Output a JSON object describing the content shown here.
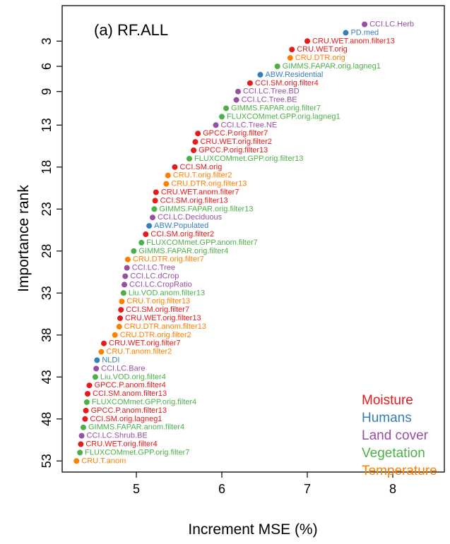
{
  "chart_data": {
    "type": "scatter",
    "title": "(a) RF.ALL",
    "xlabel": "Increment MSE (%)",
    "ylabel": "Importance rank",
    "xlim": [
      4.2,
      8.7
    ],
    "ylim": [
      1,
      54
    ],
    "xticks": [
      5,
      6,
      7,
      8
    ],
    "yticks": [
      3,
      6,
      9,
      13,
      18,
      23,
      28,
      33,
      38,
      43,
      48,
      53
    ],
    "y_reversed": true,
    "grid": false,
    "legend_position": "bottom-right",
    "categories": [
      {
        "name": "Moisture",
        "color": "#e41a1c"
      },
      {
        "name": "Humans",
        "color": "#377eb8"
      },
      {
        "name": "Land cover",
        "color": "#984ea3"
      },
      {
        "name": "Vegetation",
        "color": "#4daf4a"
      },
      {
        "name": "Temperature",
        "color": "#ff7f00"
      }
    ],
    "points": [
      {
        "rank": 1,
        "label": "CCI.LC.Herb",
        "x": 7.67,
        "category": "Land cover"
      },
      {
        "rank": 2,
        "label": "PD.med",
        "x": 7.45,
        "category": "Humans"
      },
      {
        "rank": 3,
        "label": "CRU.WET.anom.filter13",
        "x": 7.0,
        "category": "Moisture"
      },
      {
        "rank": 4,
        "label": "CRU.WET.orig",
        "x": 6.82,
        "category": "Moisture"
      },
      {
        "rank": 5,
        "label": "CRU.DTR.orig",
        "x": 6.8,
        "category": "Temperature"
      },
      {
        "rank": 6,
        "label": "GIMMS.FAPAR.orig.lagneg1",
        "x": 6.65,
        "category": "Vegetation"
      },
      {
        "rank": 7,
        "label": "ABW.Residential",
        "x": 6.45,
        "category": "Humans"
      },
      {
        "rank": 8,
        "label": "CCI.SM.orig.filter4",
        "x": 6.33,
        "category": "Moisture"
      },
      {
        "rank": 9,
        "label": "CCI.LC.Tree.BD",
        "x": 6.19,
        "category": "Land cover"
      },
      {
        "rank": 10,
        "label": "CCI.LC.Tree.BE",
        "x": 6.17,
        "category": "Land cover"
      },
      {
        "rank": 11,
        "label": "GIMMS.FAPAR.orig.filter7",
        "x": 6.05,
        "category": "Vegetation"
      },
      {
        "rank": 12,
        "label": "FLUXCOMmet.GPP.orig.lagneg1",
        "x": 6.0,
        "category": "Vegetation"
      },
      {
        "rank": 13,
        "label": "CCI.LC.Tree.NE",
        "x": 5.93,
        "category": "Land cover"
      },
      {
        "rank": 14,
        "label": "GPCC.P.orig.filter7",
        "x": 5.72,
        "category": "Moisture"
      },
      {
        "rank": 15,
        "label": "CRU.WET.orig.filter2",
        "x": 5.69,
        "category": "Moisture"
      },
      {
        "rank": 16,
        "label": "GPCC.P.orig.filter13",
        "x": 5.67,
        "category": "Moisture"
      },
      {
        "rank": 17,
        "label": "FLUXCOMmet.GPP.orig.filter13",
        "x": 5.62,
        "category": "Vegetation"
      },
      {
        "rank": 18,
        "label": "CCI.SM.orig",
        "x": 5.45,
        "category": "Moisture"
      },
      {
        "rank": 19,
        "label": "CRU.T.orig.filter2",
        "x": 5.37,
        "category": "Temperature"
      },
      {
        "rank": 20,
        "label": "CRU.DTR.orig.filter13",
        "x": 5.35,
        "category": "Temperature"
      },
      {
        "rank": 21,
        "label": "CRU.WET.anom.filter7",
        "x": 5.23,
        "category": "Moisture"
      },
      {
        "rank": 22,
        "label": "CCI.SM.orig.filter13",
        "x": 5.22,
        "category": "Moisture"
      },
      {
        "rank": 23,
        "label": "GIMMS.FAPAR.orig.filter13",
        "x": 5.21,
        "category": "Vegetation"
      },
      {
        "rank": 24,
        "label": "CCI.LC.Deciduous",
        "x": 5.19,
        "category": "Land cover"
      },
      {
        "rank": 25,
        "label": "ABW.Populated",
        "x": 5.15,
        "category": "Humans"
      },
      {
        "rank": 26,
        "label": "CCI.SM.orig.filter2",
        "x": 5.11,
        "category": "Moisture"
      },
      {
        "rank": 27,
        "label": "FLUXCOMmet.GPP.anom.filter7",
        "x": 5.06,
        "category": "Vegetation"
      },
      {
        "rank": 28,
        "label": "GIMMS.FAPAR.orig.filter4",
        "x": 4.97,
        "category": "Vegetation"
      },
      {
        "rank": 29,
        "label": "CRU.DTR.orig.filter7",
        "x": 4.9,
        "category": "Temperature"
      },
      {
        "rank": 30,
        "label": "CCI.LC.Tree",
        "x": 4.89,
        "category": "Land cover"
      },
      {
        "rank": 31,
        "label": "CCI.LC.dCrop",
        "x": 4.87,
        "category": "Land cover"
      },
      {
        "rank": 32,
        "label": "CCI.LC.CropRatio",
        "x": 4.86,
        "category": "Land cover"
      },
      {
        "rank": 33,
        "label": "Liu.VOD.anom.filter13",
        "x": 4.85,
        "category": "Vegetation"
      },
      {
        "rank": 34,
        "label": "CRU.T.orig.filter13",
        "x": 4.83,
        "category": "Temperature"
      },
      {
        "rank": 35,
        "label": "CCI.SM.orig.filter7",
        "x": 4.82,
        "category": "Moisture"
      },
      {
        "rank": 36,
        "label": "CRU.WET.orig.filter13",
        "x": 4.81,
        "category": "Moisture"
      },
      {
        "rank": 37,
        "label": "CRU.DTR.anom.filter13",
        "x": 4.8,
        "category": "Temperature"
      },
      {
        "rank": 38,
        "label": "CRU.DTR.orig.filter2",
        "x": 4.75,
        "category": "Temperature"
      },
      {
        "rank": 39,
        "label": "CRU.WET.orig.filter7",
        "x": 4.62,
        "category": "Moisture"
      },
      {
        "rank": 40,
        "label": "CRU.T.anom.filter2",
        "x": 4.59,
        "category": "Temperature"
      },
      {
        "rank": 41,
        "label": "NLDI",
        "x": 4.54,
        "category": "Humans"
      },
      {
        "rank": 42,
        "label": "CCI.LC.Bare",
        "x": 4.53,
        "category": "Land cover"
      },
      {
        "rank": 43,
        "label": "Liu.VOD.orig.filter4",
        "x": 4.52,
        "category": "Vegetation"
      },
      {
        "rank": 44,
        "label": "GPCC.P.anom.filter4",
        "x": 4.45,
        "category": "Moisture"
      },
      {
        "rank": 45,
        "label": "CCI.SM.anom.filter13",
        "x": 4.43,
        "category": "Moisture"
      },
      {
        "rank": 46,
        "label": "FLUXCOMmet.GPP.orig.filter4",
        "x": 4.42,
        "category": "Vegetation"
      },
      {
        "rank": 47,
        "label": "GPCC.P.anom.filter13",
        "x": 4.41,
        "category": "Moisture"
      },
      {
        "rank": 48,
        "label": "CCI.SM.orig.lagneg1",
        "x": 4.4,
        "category": "Moisture"
      },
      {
        "rank": 49,
        "label": "GIMMS.FAPAR.anom.filter4",
        "x": 4.38,
        "category": "Vegetation"
      },
      {
        "rank": 50,
        "label": "CCI.LC.Shrub.BE",
        "x": 4.36,
        "category": "Land cover"
      },
      {
        "rank": 51,
        "label": "CRU.WET.orig.filter4",
        "x": 4.35,
        "category": "Moisture"
      },
      {
        "rank": 52,
        "label": "FLUXCOMmet.GPP.orig.filter7",
        "x": 4.34,
        "category": "Vegetation"
      },
      {
        "rank": 53,
        "label": "CRU.T.anom",
        "x": 4.3,
        "category": "Temperature"
      }
    ]
  }
}
